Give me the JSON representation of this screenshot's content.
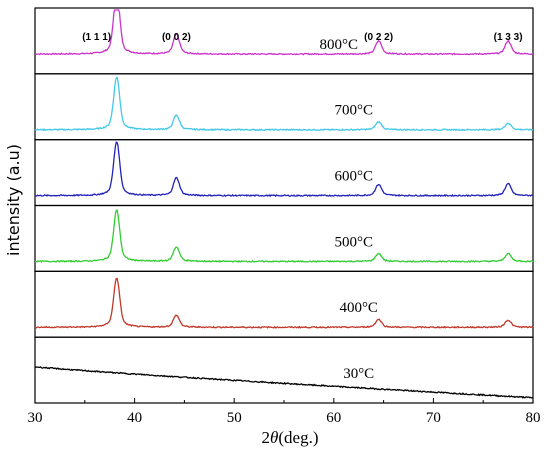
{
  "chart_data": {
    "type": "line",
    "title": "",
    "xlabel_prefix": "2",
    "xlabel_italic": "θ",
    "xlabel_suffix": "(deg.)",
    "ylabel": "intensity (a.u)",
    "xlim": [
      30,
      80
    ],
    "x_ticks": [
      "30",
      "40",
      "50",
      "60",
      "70",
      "80"
    ],
    "peak_labels": [
      {
        "text": "(1 1 1)",
        "x": 38.2
      },
      {
        "text": "(0 0 2)",
        "x": 44.2
      },
      {
        "text": "(0 2 2)",
        "x": 64.5
      },
      {
        "text": "(1 3 3)",
        "x": 77.5
      }
    ],
    "series": [
      {
        "name": "800°C",
        "color": "#cc33cc",
        "baseline": 0.3,
        "peaks": [
          {
            "x": 38.2,
            "height": 0.95
          },
          {
            "x": 44.2,
            "height": 0.3
          },
          {
            "x": 64.5,
            "height": 0.2
          },
          {
            "x": 77.5,
            "height": 0.2
          }
        ],
        "label_x": 60.5
      },
      {
        "name": "700°C",
        "color": "#44c8e6",
        "baseline": 0.15,
        "peaks": [
          {
            "x": 38.2,
            "height": 0.8
          },
          {
            "x": 44.2,
            "height": 0.22
          },
          {
            "x": 64.5,
            "height": 0.12
          },
          {
            "x": 77.5,
            "height": 0.1
          }
        ],
        "label_x": 62.0
      },
      {
        "name": "600°C",
        "color": "#2222bb",
        "baseline": 0.15,
        "peaks": [
          {
            "x": 38.2,
            "height": 0.82
          },
          {
            "x": 44.2,
            "height": 0.27
          },
          {
            "x": 64.5,
            "height": 0.17
          },
          {
            "x": 77.5,
            "height": 0.18
          }
        ],
        "label_x": 62.0
      },
      {
        "name": "500°C",
        "color": "#33cc33",
        "baseline": 0.15,
        "peaks": [
          {
            "x": 38.2,
            "height": 0.78
          },
          {
            "x": 44.2,
            "height": 0.22
          },
          {
            "x": 64.5,
            "height": 0.12
          },
          {
            "x": 77.5,
            "height": 0.12
          }
        ],
        "label_x": 62.0
      },
      {
        "name": "400°C",
        "color": "#c0392b",
        "baseline": 0.15,
        "peaks": [
          {
            "x": 38.2,
            "height": 0.75
          },
          {
            "x": 44.2,
            "height": 0.18
          },
          {
            "x": 64.5,
            "height": 0.12
          },
          {
            "x": 77.5,
            "height": 0.11
          }
        ],
        "label_x": 62.5
      },
      {
        "name": "30°C",
        "color": "#000000",
        "baseline": 0.55,
        "decay_to": 0.08,
        "peaks": [],
        "label_x": 62.5
      }
    ]
  }
}
